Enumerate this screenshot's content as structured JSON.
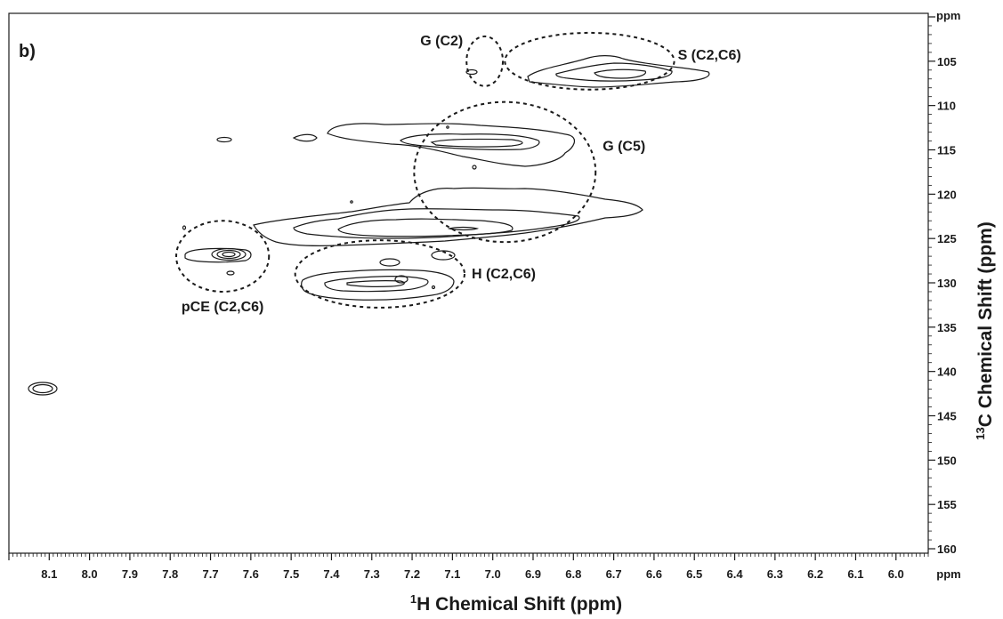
{
  "chart_data": {
    "type": "contour",
    "panel_label": "b)",
    "x_axis": {
      "title_sup": "1",
      "title_main": "H Chemical Shift (ppm)",
      "unit": "ppm",
      "range": [
        8.2,
        5.92
      ],
      "reversed": true,
      "ticks": [
        8.1,
        8.0,
        7.9,
        7.8,
        7.7,
        7.6,
        7.5,
        7.4,
        7.3,
        7.2,
        7.1,
        7.0,
        6.9,
        6.8,
        6.7,
        6.6,
        6.5,
        6.4,
        6.3,
        6.2,
        6.1,
        6.0
      ],
      "tick_labels": [
        "8.1",
        "8.0",
        "7.9",
        "7.8",
        "7.7",
        "7.6",
        "7.5",
        "7.4",
        "7.3",
        "7.2",
        "7.1",
        "7.0",
        "6.9",
        "6.8",
        "6.7",
        "6.6",
        "6.5",
        "6.4",
        "6.3",
        "6.2",
        "6.1",
        "6.0"
      ]
    },
    "y_axis": {
      "title_sup": "13",
      "title_main": "C Chemical Shift (ppm)",
      "unit": "ppm",
      "range": [
        99.6,
        160.5
      ],
      "reversed": true,
      "ticks": [
        105,
        110,
        115,
        120,
        125,
        130,
        135,
        140,
        145,
        150,
        155,
        160
      ],
      "tick_labels": [
        "105",
        "110",
        "115",
        "120",
        "125",
        "130",
        "135",
        "140",
        "145",
        "150",
        "155",
        "160"
      ]
    },
    "grid": false,
    "annotations": [
      {
        "label": "G (C2)",
        "region": {
          "h": 7.02,
          "c": 105.0,
          "rh": 0.045,
          "rc": 2.8
        }
      },
      {
        "label": "S (C2,C6)",
        "region": {
          "h": 6.76,
          "c": 105.0,
          "rh": 0.21,
          "rc": 3.2
        }
      },
      {
        "label": "G (C5)",
        "region": {
          "h": 6.97,
          "c": 117.5,
          "rh": 0.225,
          "rc": 7.9
        }
      },
      {
        "label": "pCE (C2,C6)",
        "region": {
          "h": 7.67,
          "c": 127.0,
          "rh": 0.115,
          "rc": 4.0
        }
      },
      {
        "label": "H (C2,C6)",
        "region": {
          "h": 7.28,
          "c": 129.0,
          "rh": 0.21,
          "rc": 3.8
        }
      }
    ],
    "peaks": [
      {
        "h": 8.12,
        "c": 141.0
      },
      {
        "h": 7.67,
        "c": 125.8
      },
      {
        "h": 7.23,
        "c": 128.5
      },
      {
        "h": 6.71,
        "c": 105.0
      },
      {
        "h": 7.02,
        "c": 104.9
      },
      {
        "h": 6.93,
        "c": 112.9
      },
      {
        "h": 6.96,
        "c": 122.9
      },
      {
        "h": 7.72,
        "c": 112.4
      },
      {
        "h": 7.11,
        "c": 125.6
      },
      {
        "h": 7.26,
        "c": 126.0
      },
      {
        "h": 7.66,
        "c": 127.5
      }
    ]
  }
}
